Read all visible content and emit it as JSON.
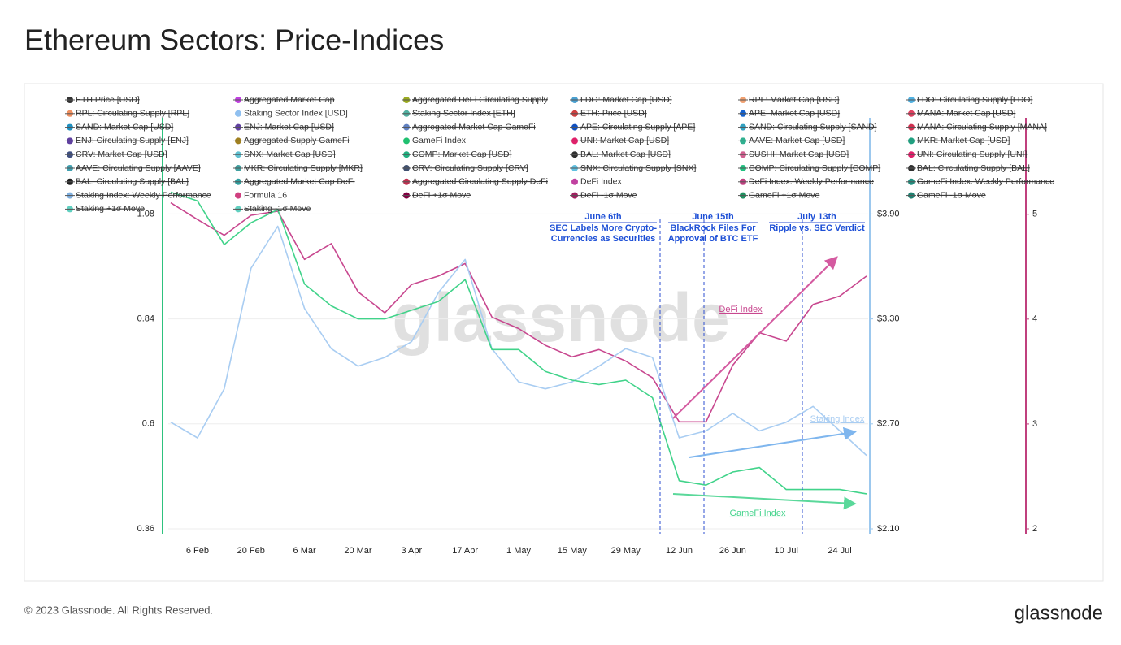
{
  "chart_data": {
    "type": "line",
    "title": "Ethereum Sectors: Price-Indices",
    "footer": "© 2023 Glassnode. All Rights Reserved.",
    "logo": "glassnode",
    "watermark": "glassnode",
    "categories": [
      null,
      "6 Feb",
      null,
      "20 Feb",
      null,
      "6 Mar",
      null,
      "20 Mar",
      null,
      "3 Apr",
      null,
      "17 Apr",
      null,
      "1 May",
      null,
      "15 May",
      null,
      "29 May",
      null,
      "12 Jun",
      null,
      "26 Jun",
      null,
      "10 Jul",
      null,
      "24 Jul",
      null
    ],
    "ylim": [
      0.36,
      1.3
    ],
    "yticks": [
      0.36,
      0.6,
      0.84,
      1.08
    ],
    "axis_color": "#2ec27e",
    "y2lim": [
      2.1,
      4.45
    ],
    "y2ticks": [
      {
        "value": 2.1,
        "label": "$2.10"
      },
      {
        "value": 2.7,
        "label": "$2.70"
      },
      {
        "value": 3.3,
        "label": "$3.30"
      },
      {
        "value": 3.9,
        "label": "$3.90"
      }
    ],
    "y2_color": "#9cc8ee",
    "y3lim": [
      2,
      5.92
    ],
    "y3ticks": [
      2,
      3,
      4,
      5
    ],
    "y3_color": "#c0407e",
    "grid": true,
    "series": [
      {
        "name": "DeFi Index",
        "color": "#c8478f",
        "axis": "y3",
        "values": [
          5.11,
          4.95,
          4.8,
          4.99,
          5.03,
          4.57,
          4.72,
          4.26,
          4.06,
          4.33,
          4.41,
          4.53,
          4.02,
          3.91,
          3.75,
          3.64,
          3.71,
          3.6,
          3.44,
          3.02,
          3.02,
          3.56,
          3.87,
          3.79,
          4.14,
          4.22,
          4.41
        ]
      },
      {
        "name": "Staking Index",
        "color": "#a9cdf2",
        "axis": "y2",
        "values": [
          2.71,
          2.62,
          2.9,
          3.59,
          3.83,
          3.36,
          3.13,
          3.03,
          3.08,
          3.17,
          3.45,
          3.64,
          3.13,
          2.94,
          2.9,
          2.94,
          3.03,
          3.13,
          3.08,
          2.62,
          2.66,
          2.76,
          2.66,
          2.71,
          2.8,
          2.66,
          2.52
        ]
      },
      {
        "name": "GameFi Index",
        "color": "#41d38a",
        "axis": "y",
        "values": [
          1.13,
          1.11,
          1.01,
          1.06,
          1.09,
          0.92,
          0.87,
          0.84,
          0.84,
          0.86,
          0.88,
          0.93,
          0.77,
          0.77,
          0.72,
          0.7,
          0.69,
          0.7,
          0.66,
          0.47,
          0.46,
          0.49,
          0.5,
          0.45,
          0.45,
          0.45,
          0.44
        ]
      }
    ],
    "annotations": [
      {
        "lines": [
          "June 6th",
          "SEC Labels More Crypto-",
          "Currencies as Securities"
        ]
      },
      {
        "lines": [
          "June 15th",
          "BlackRock Files For",
          "Approval of BTC ETF"
        ]
      },
      {
        "lines": [
          "July 13th",
          "Ripple vs. SEC Verdict"
        ]
      }
    ],
    "legend": [
      {
        "name": "ETH Price [USD]",
        "color": "#333333",
        "hidden": true
      },
      {
        "name": "Aggregated Market Cap",
        "color": "#c040e0",
        "hidden": true
      },
      {
        "name": "Aggregated DeFi Circulating Supply",
        "color": "#9aaa20",
        "hidden": true
      },
      {
        "name": "LDO: Market Cap [USD]",
        "color": "#4aa0d0",
        "hidden": true
      },
      {
        "name": "RPL: Market Cap [USD]",
        "color": "#f0a070",
        "hidden": true
      },
      {
        "name": "LDO: Circulating Supply [LDO]",
        "color": "#50b0e0",
        "hidden": true
      },
      {
        "name": "RPL: Circulating Supply [RPL]",
        "color": "#f09060",
        "hidden": true
      },
      {
        "name": "Staking Sector Index [USD]",
        "color": "#90c0f0",
        "hidden": false
      },
      {
        "name": "Staking Sector Index [ETH]",
        "color": "#50b0a0",
        "hidden": true
      },
      {
        "name": "ETH: Price [USD]",
        "color": "#d04040",
        "hidden": true
      },
      {
        "name": "APE: Market Cap [USD]",
        "color": "#1060d0",
        "hidden": true
      },
      {
        "name": "MANA: Market Cap [USD]",
        "color": "#e04060",
        "hidden": true
      },
      {
        "name": "SAND: Market Cap [USD]",
        "color": "#2090c0",
        "hidden": true
      },
      {
        "name": "ENJ: Market Cap [USD]",
        "color": "#6040a0",
        "hidden": true
      },
      {
        "name": "Aggregated Market Cap GameFi",
        "color": "#6080c0",
        "hidden": true
      },
      {
        "name": "APE: Circulating Supply [APE]",
        "color": "#1050c0",
        "hidden": true
      },
      {
        "name": "SAND: Circulating Supply [SAND]",
        "color": "#30a0c0",
        "hidden": true
      },
      {
        "name": "MANA: Circulating Supply [MANA]",
        "color": "#d03050",
        "hidden": true
      },
      {
        "name": "ENJ: Circulating Supply [ENJ]",
        "color": "#6040a0",
        "hidden": true
      },
      {
        "name": "Aggregated Supply GameFi",
        "color": "#a08020",
        "hidden": true
      },
      {
        "name": "GameFi Index",
        "color": "#20c070",
        "hidden": false
      },
      {
        "name": "UNI: Market Cap [USD]",
        "color": "#e0206a",
        "hidden": true
      },
      {
        "name": "AAVE: Market Cap [USD]",
        "color": "#30b090",
        "hidden": true
      },
      {
        "name": "MKR: Market Cap [USD]",
        "color": "#20a080",
        "hidden": true
      },
      {
        "name": "CRV: Market Cap [USD]",
        "color": "#405080",
        "hidden": true
      },
      {
        "name": "SNX: Market Cap [USD]",
        "color": "#60c0d0",
        "hidden": true
      },
      {
        "name": "COMP: Market Cap [USD]",
        "color": "#20b080",
        "hidden": true
      },
      {
        "name": "BAL: Market Cap [USD]",
        "color": "#303030",
        "hidden": true
      },
      {
        "name": "SUSHI: Market Cap [USD]",
        "color": "#d06090",
        "hidden": true
      },
      {
        "name": "UNI: Circulating Supply [UNI]",
        "color": "#e0206a",
        "hidden": true
      },
      {
        "name": "AAVE: Circulating Supply [AAVE]",
        "color": "#40a0b0",
        "hidden": true
      },
      {
        "name": "MKR: Circulating Supply [MKR]",
        "color": "#40a0a0",
        "hidden": true
      },
      {
        "name": "CRV: Circulating Supply [CRV]",
        "color": "#405070",
        "hidden": true
      },
      {
        "name": "SNX: Circulating Supply [SNX]",
        "color": "#60c0e0",
        "hidden": true
      },
      {
        "name": "COMP: Circulating Supply [COMP]",
        "color": "#20c080",
        "hidden": true
      },
      {
        "name": "BAL: Circulating Supply [BAL]",
        "color": "#303030",
        "hidden": true
      },
      {
        "name": "BAL: Circulating Supply [BAL]",
        "color": "#202020",
        "hidden": true
      },
      {
        "name": "Aggregated Market Cap DeFi",
        "color": "#30a0a0",
        "hidden": true
      },
      {
        "name": "Aggregated Circulating Supply DeFi",
        "color": "#c03050",
        "hidden": true
      },
      {
        "name": "DeFi Index",
        "color": "#c040a0",
        "hidden": false
      },
      {
        "name": "DeFi Index: Weekly Performance",
        "color": "#c04080",
        "hidden": true
      },
      {
        "name": "GameFi Index: Weekly Performance",
        "color": "#209080",
        "hidden": true
      },
      {
        "name": "Staking Index: Weekly Performance",
        "color": "#80b0e0",
        "hidden": true
      },
      {
        "name": "Formula 16",
        "color": "#d04080",
        "hidden": false
      },
      {
        "name": "DeFi +1σ Move",
        "color": "#800040",
        "hidden": true
      },
      {
        "name": "DeFi -1σ Move",
        "color": "#a02060",
        "hidden": true
      },
      {
        "name": "GameFi +1σ Move",
        "color": "#209060",
        "hidden": true
      },
      {
        "name": "GameFi -1σ Move",
        "color": "#208070",
        "hidden": true
      },
      {
        "name": "Staking +1σ Move",
        "color": "#60d0c0",
        "hidden": true
      },
      {
        "name": "Staking -1σ Move",
        "color": "#60d0c0",
        "hidden": true
      }
    ]
  }
}
